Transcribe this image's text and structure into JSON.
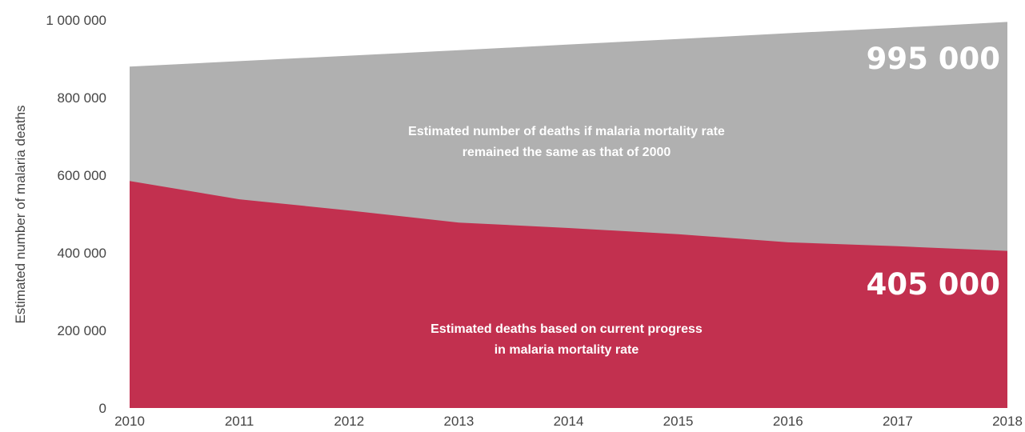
{
  "chart_data": {
    "type": "area",
    "title": "",
    "xlabel": "",
    "ylabel": "Estimated number of malaria deaths",
    "x": [
      "2010",
      "2011",
      "2012",
      "2013",
      "2014",
      "2015",
      "2016",
      "2017",
      "2018"
    ],
    "ylim": [
      0,
      1000000
    ],
    "yticks": [
      0,
      200000,
      400000,
      600000,
      800000,
      1000000
    ],
    "ytick_labels": [
      "0",
      "200 000",
      "400 000",
      "600 000",
      "800 000",
      "1 000 000"
    ],
    "grid": false,
    "legend": "none",
    "series": [
      {
        "id": "baseline",
        "values": [
          880000,
          894000,
          908000,
          922000,
          937000,
          951000,
          966000,
          980000,
          995000
        ],
        "color": "#b0b0b0",
        "label_lines": [
          "Estimated number of deaths if malaria mortality rate",
          "remained the same as that of 2000"
        ],
        "end_label": "995 000"
      },
      {
        "id": "current",
        "values": [
          585000,
          538000,
          509000,
          478000,
          464000,
          448000,
          427000,
          417000,
          405000
        ],
        "color": "#c2304f",
        "label_lines": [
          "Estimated deaths based on current progress",
          "in malaria mortality rate"
        ],
        "end_label": "405 000"
      }
    ]
  }
}
